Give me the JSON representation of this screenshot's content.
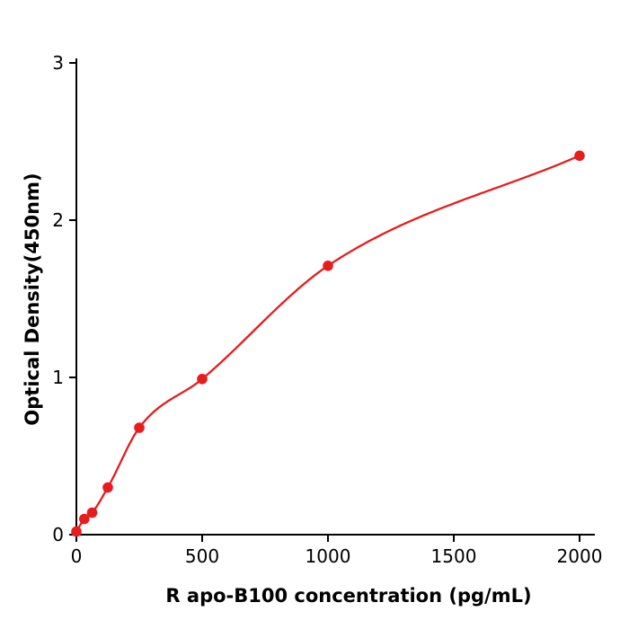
{
  "chart_data": {
    "type": "scatter",
    "title": "",
    "xlabel": "R  apo-B100 concentration (pg/mL)",
    "ylabel": "Optical Density(450nm)",
    "x": [
      0,
      31.25,
      62.5,
      125,
      250,
      500,
      1000,
      2000
    ],
    "y": [
      0.02,
      0.1,
      0.14,
      0.3,
      0.68,
      0.99,
      1.71,
      2.41
    ],
    "x_ticks": [
      0,
      500,
      1000,
      1500,
      2000
    ],
    "y_ticks": [
      0,
      1,
      2,
      3
    ],
    "xlim": [
      0,
      2000
    ],
    "ylim": [
      0,
      3
    ],
    "grid": false,
    "legend": null,
    "fit": "smooth standard-curve fit through points",
    "point_color": "#e81b1d",
    "line_color": "#e81b1d",
    "axis_color": "#000000",
    "tick_label_color": "#000000"
  }
}
